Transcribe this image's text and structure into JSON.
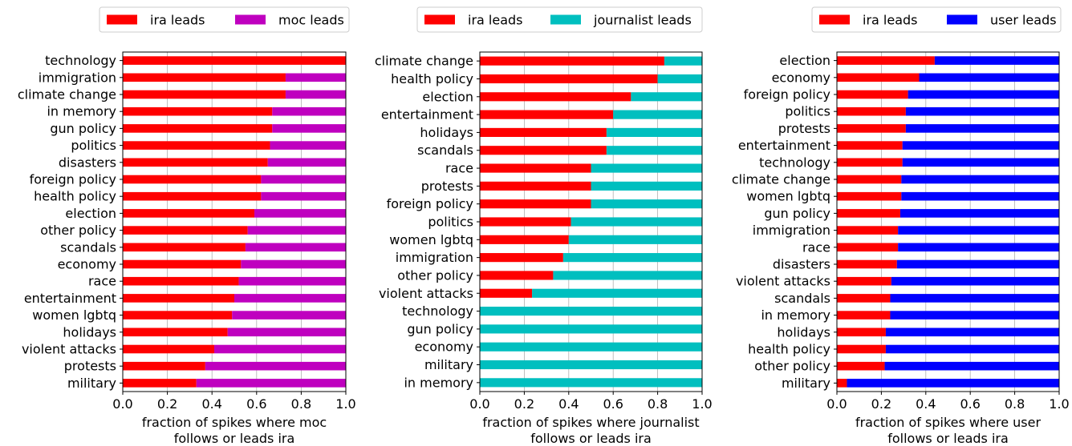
{
  "chart_data": [
    {
      "type": "bar",
      "orientation": "horizontal",
      "stacked": true,
      "categories": [
        "technology",
        "immigration",
        "climate change",
        "in memory",
        "gun policy",
        "politics",
        "disasters",
        "foreign policy",
        "health policy",
        "election",
        "other policy",
        "scandals",
        "economy",
        "race",
        "entertainment",
        "women lgbtq",
        "holidays",
        "violent attacks",
        "protests",
        "military"
      ],
      "series": [
        {
          "name": "ira leads",
          "color": "#ff0000",
          "values": [
            1.0,
            0.73,
            0.73,
            0.67,
            0.67,
            0.66,
            0.65,
            0.62,
            0.62,
            0.59,
            0.56,
            0.55,
            0.53,
            0.52,
            0.5,
            0.49,
            0.47,
            0.41,
            0.37,
            0.33
          ]
        },
        {
          "name": "moc leads",
          "color": "#bf00bf",
          "values": [
            0.0,
            0.27,
            0.27,
            0.33,
            0.33,
            0.34,
            0.35,
            0.38,
            0.38,
            0.41,
            0.44,
            0.45,
            0.47,
            0.48,
            0.5,
            0.51,
            0.53,
            0.59,
            0.63,
            0.67
          ]
        }
      ],
      "xlabel_line1": "fraction of spikes where moc",
      "xlabel_line2": "follows or leads ira",
      "xlim": [
        0,
        1
      ],
      "xticks": [
        "0.0",
        "0.2",
        "0.4",
        "0.6",
        "0.8",
        "1.0"
      ],
      "grid": "vertical",
      "legend": "top"
    },
    {
      "type": "bar",
      "orientation": "horizontal",
      "stacked": true,
      "categories": [
        "climate change",
        "health policy",
        "election",
        "entertainment",
        "holidays",
        "scandals",
        "race",
        "protests",
        "foreign policy",
        "politics",
        "women lgbtq",
        "immigration",
        "other policy",
        "violent attacks",
        "technology",
        "gun policy",
        "economy",
        "military",
        "in memory"
      ],
      "series": [
        {
          "name": "ira leads",
          "color": "#ff0000",
          "values": [
            0.83,
            0.8,
            0.68,
            0.6,
            0.57,
            0.57,
            0.5,
            0.5,
            0.5,
            0.41,
            0.4,
            0.375,
            0.33,
            0.235,
            0.0,
            0.0,
            0.0,
            0.0,
            0.0
          ]
        },
        {
          "name": "journalist leads",
          "color": "#00bfbf",
          "values": [
            0.17,
            0.2,
            0.32,
            0.4,
            0.43,
            0.43,
            0.5,
            0.5,
            0.5,
            0.59,
            0.6,
            0.625,
            0.67,
            0.765,
            1.0,
            1.0,
            1.0,
            1.0,
            1.0
          ]
        }
      ],
      "xlabel_line1": "fraction of spikes where journalist",
      "xlabel_line2": "follows or leads ira",
      "xlim": [
        0,
        1
      ],
      "xticks": [
        "0.0",
        "0.2",
        "0.4",
        "0.6",
        "0.8",
        "1.0"
      ],
      "grid": "vertical",
      "legend": "top"
    },
    {
      "type": "bar",
      "orientation": "horizontal",
      "stacked": true,
      "categories": [
        "election",
        "economy",
        "foreign policy",
        "politics",
        "protests",
        "entertainment",
        "technology",
        "climate change",
        "women lgbtq",
        "gun policy",
        "immigration",
        "race",
        "disasters",
        "violent attacks",
        "scandals",
        "in memory",
        "holidays",
        "health policy",
        "other policy",
        "military"
      ],
      "series": [
        {
          "name": "ira leads",
          "color": "#ff0000",
          "values": [
            0.44,
            0.37,
            0.32,
            0.31,
            0.31,
            0.295,
            0.295,
            0.29,
            0.29,
            0.285,
            0.275,
            0.275,
            0.27,
            0.245,
            0.24,
            0.24,
            0.22,
            0.22,
            0.215,
            0.045
          ]
        },
        {
          "name": "user leads",
          "color": "#0000ff",
          "values": [
            0.56,
            0.63,
            0.68,
            0.69,
            0.69,
            0.705,
            0.705,
            0.71,
            0.71,
            0.715,
            0.725,
            0.725,
            0.73,
            0.755,
            0.76,
            0.76,
            0.78,
            0.78,
            0.785,
            0.955
          ]
        }
      ],
      "xlabel_line1": "fraction of spikes where user",
      "xlabel_line2": "follows or leads ira",
      "xlim": [
        0,
        1
      ],
      "xticks": [
        "0.0",
        "0.2",
        "0.4",
        "0.6",
        "0.8",
        "1.0"
      ],
      "grid": "vertical",
      "legend": "top"
    }
  ]
}
